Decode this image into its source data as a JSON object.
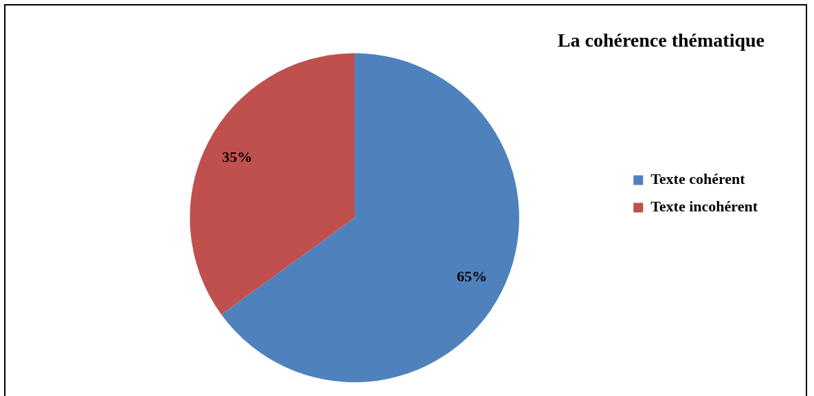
{
  "chart_data": {
    "type": "pie",
    "title": "La cohérence thématique",
    "categories": [
      "Texte cohérent",
      "Texte incohérent"
    ],
    "values": [
      65,
      35
    ],
    "colors": [
      "#4f81bd",
      "#c0504d"
    ],
    "value_labels": [
      "65%",
      "35%"
    ],
    "legend": "right"
  }
}
